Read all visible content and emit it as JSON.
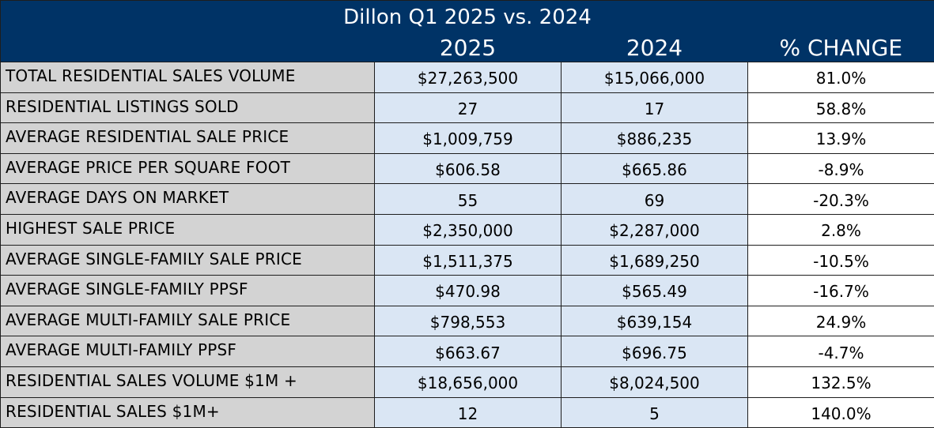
{
  "title": "Dillon Q1 2025 vs. 2024",
  "colors": {
    "header_bg": "#003366",
    "header_text": "#ffffff",
    "label_bg": "#d3d3d3",
    "year_cells_bg": "#dae6f4",
    "change_cells_bg": "#ffffff"
  },
  "chart_data": {
    "type": "table",
    "title": "Dillon Q1 2025 vs. 2024",
    "columns": [
      "",
      "2025",
      "2024",
      "% CHANGE"
    ],
    "rows": [
      {
        "label": "TOTAL RESIDENTIAL SALES VOLUME",
        "v2025": "$27,263,500",
        "v2024": "$15,066,000",
        "change": "81.0%"
      },
      {
        "label": "RESIDENTIAL LISTINGS SOLD",
        "v2025": "27",
        "v2024": "17",
        "change": "58.8%"
      },
      {
        "label": "AVERAGE RESIDENTIAL SALE PRICE",
        "v2025": "$1,009,759",
        "v2024": "$886,235",
        "change": "13.9%"
      },
      {
        "label": "AVERAGE PRICE PER SQUARE FOOT",
        "v2025": "$606.58",
        "v2024": "$665.86",
        "change": "-8.9%"
      },
      {
        "label": "AVERAGE DAYS ON MARKET",
        "v2025": "55",
        "v2024": "69",
        "change": "-20.3%"
      },
      {
        "label": "HIGHEST SALE PRICE",
        "v2025": "$2,350,000",
        "v2024": "$2,287,000",
        "change": "2.8%"
      },
      {
        "label": "AVERAGE SINGLE-FAMILY SALE PRICE",
        "v2025": "$1,511,375",
        "v2024": "$1,689,250",
        "change": "-10.5%"
      },
      {
        "label": "AVERAGE SINGLE-FAMILY PPSF",
        "v2025": "$470.98",
        "v2024": "$565.49",
        "change": "-16.7%"
      },
      {
        "label": "AVERAGE MULTI-FAMILY SALE PRICE",
        "v2025": "$798,553",
        "v2024": "$639,154",
        "change": "24.9%"
      },
      {
        "label": "AVERAGE MULTI-FAMILY PPSF",
        "v2025": "$663.67",
        "v2024": "$696.75",
        "change": "-4.7%"
      },
      {
        "label": "RESIDENTIAL SALES VOLUME $1M +",
        "v2025": "$18,656,000",
        "v2024": "$8,024,500",
        "change": "132.5%"
      },
      {
        "label": "RESIDENTIAL SALES $1M+",
        "v2025": "12",
        "v2024": "5",
        "change": "140.0%"
      }
    ]
  }
}
